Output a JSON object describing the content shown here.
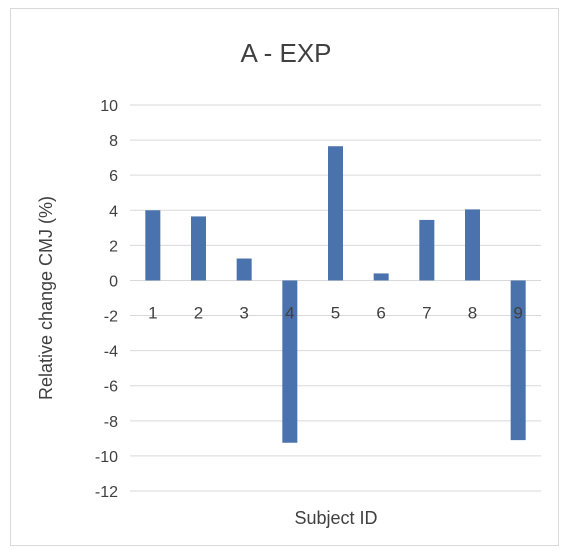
{
  "chart_data": {
    "type": "bar",
    "title": "A - EXP",
    "xlabel": "Subject ID",
    "ylabel": "Relative change CMJ (%)",
    "categories": [
      "1",
      "2",
      "3",
      "4",
      "5",
      "6",
      "7",
      "8",
      "9"
    ],
    "values": [
      4.0,
      3.65,
      1.25,
      -9.25,
      7.65,
      0.4,
      3.45,
      4.05,
      -9.1
    ],
    "ylim": [
      -12,
      10
    ],
    "yticks": [
      10,
      8,
      6,
      4,
      2,
      0,
      -2,
      -4,
      -6,
      -8,
      -10,
      -12
    ],
    "grid": true,
    "bar_color": "#4a72ac"
  }
}
